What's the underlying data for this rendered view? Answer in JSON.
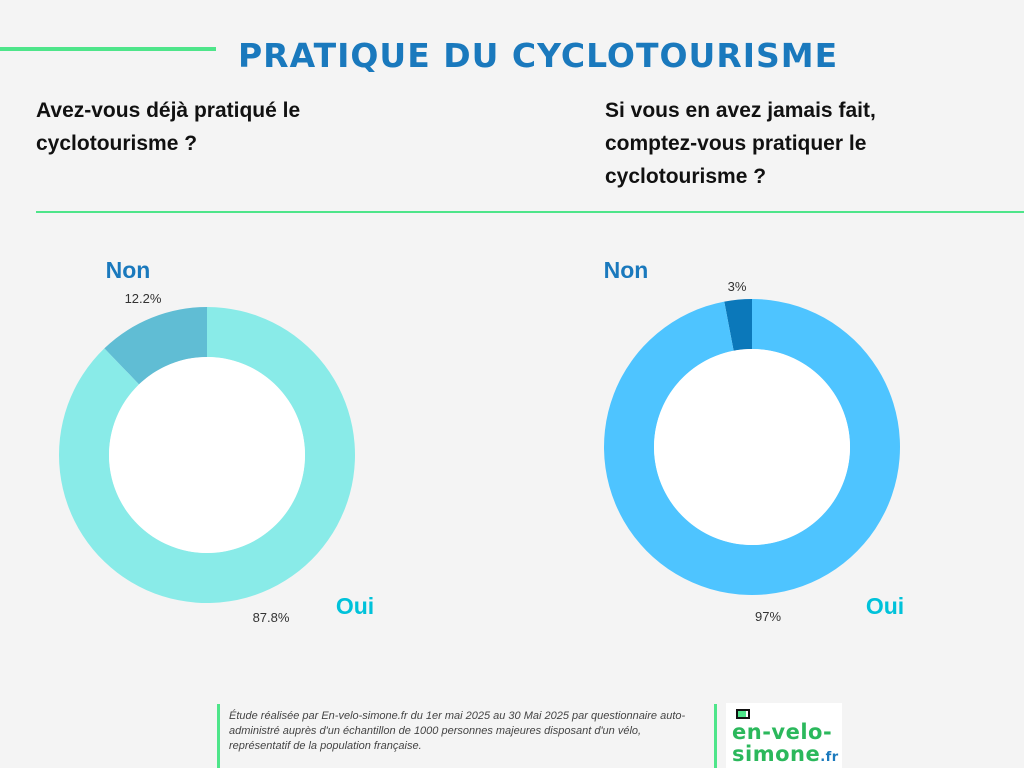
{
  "title": "PRATIQUE DU CYCLOTOURISME",
  "questions": {
    "left": "Avez-vous déjà pratiqué le cyclotourisme ?",
    "right": "Si vous en avez jamais fait, comptez-vous pratiquer le cyclotourisme ?"
  },
  "footer": {
    "note": "Étude réalisée par En-velo-simone.fr du 1er mai 2025 au 30 Mai 2025 par questionnaire auto-administré auprès d'un échantillon de 1000 personnes majeures disposant d'un vélo, représentatif de la population française.",
    "logo_line1": "en-velo-",
    "logo_line2": "simone",
    "logo_tld": ".fr"
  },
  "colors": {
    "title": "#1a79bd",
    "accent_green": "#4ee58a",
    "left_oui": "#89ebe8",
    "left_non": "#60bdd4",
    "right_oui": "#4ec4ff",
    "right_non": "#0b78ba",
    "label_non": "#1a79bd",
    "label_oui": "#00c2da"
  },
  "chart_data": [
    {
      "type": "pie",
      "donut": true,
      "categories": [
        "Non",
        "Oui"
      ],
      "values": [
        12.2,
        87.8
      ],
      "value_labels": [
        "12.2%",
        "87.8%"
      ]
    },
    {
      "type": "pie",
      "donut": true,
      "categories": [
        "Non",
        "Oui"
      ],
      "values": [
        3,
        97
      ],
      "value_labels": [
        "3%",
        "97%"
      ]
    }
  ]
}
